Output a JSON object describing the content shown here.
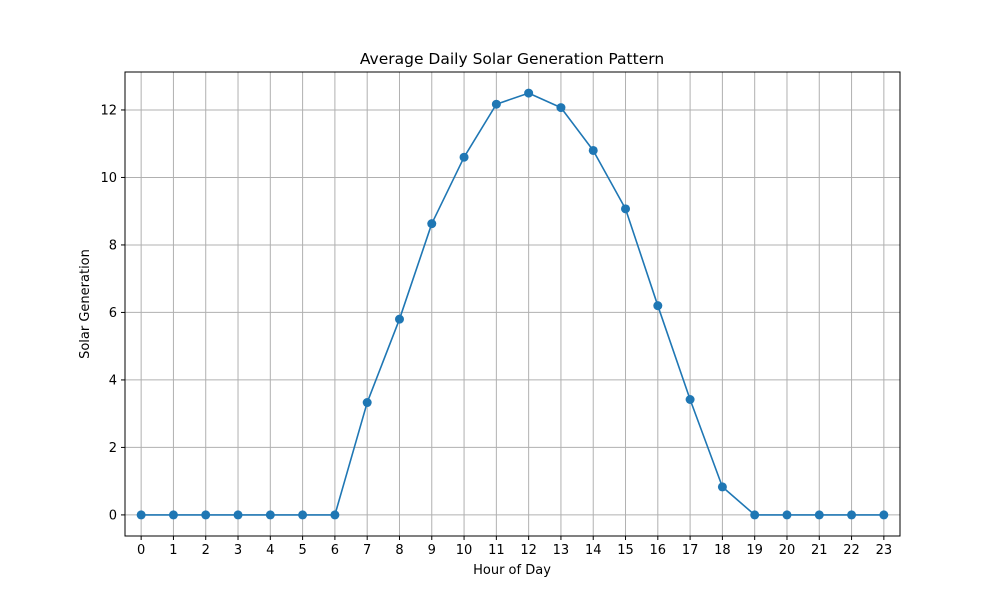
{
  "chart_data": {
    "type": "line",
    "title": "Average Daily Solar Generation Pattern",
    "xlabel": "Hour of Day",
    "ylabel": "Solar Generation",
    "x": [
      0,
      1,
      2,
      3,
      4,
      5,
      6,
      7,
      8,
      9,
      10,
      11,
      12,
      13,
      14,
      15,
      16,
      17,
      18,
      19,
      20,
      21,
      22,
      23
    ],
    "series": [
      {
        "values": [
          0,
          0,
          0,
          0,
          0,
          0,
          0,
          3.33,
          5.8,
          8.63,
          10.6,
          12.17,
          12.5,
          12.07,
          10.8,
          9.07,
          6.2,
          3.42,
          0.83,
          0,
          0,
          0,
          0,
          0
        ],
        "color": "#1f77b4",
        "marker": "circle"
      }
    ],
    "xlim": [
      -0.5,
      23.5
    ],
    "ylim": [
      -0.625,
      13.125
    ],
    "xticks": [
      0,
      1,
      2,
      3,
      4,
      5,
      6,
      7,
      8,
      9,
      10,
      11,
      12,
      13,
      14,
      15,
      16,
      17,
      18,
      19,
      20,
      21,
      22,
      23
    ],
    "yticks": [
      0,
      2,
      4,
      6,
      8,
      10,
      12
    ],
    "grid": true
  }
}
